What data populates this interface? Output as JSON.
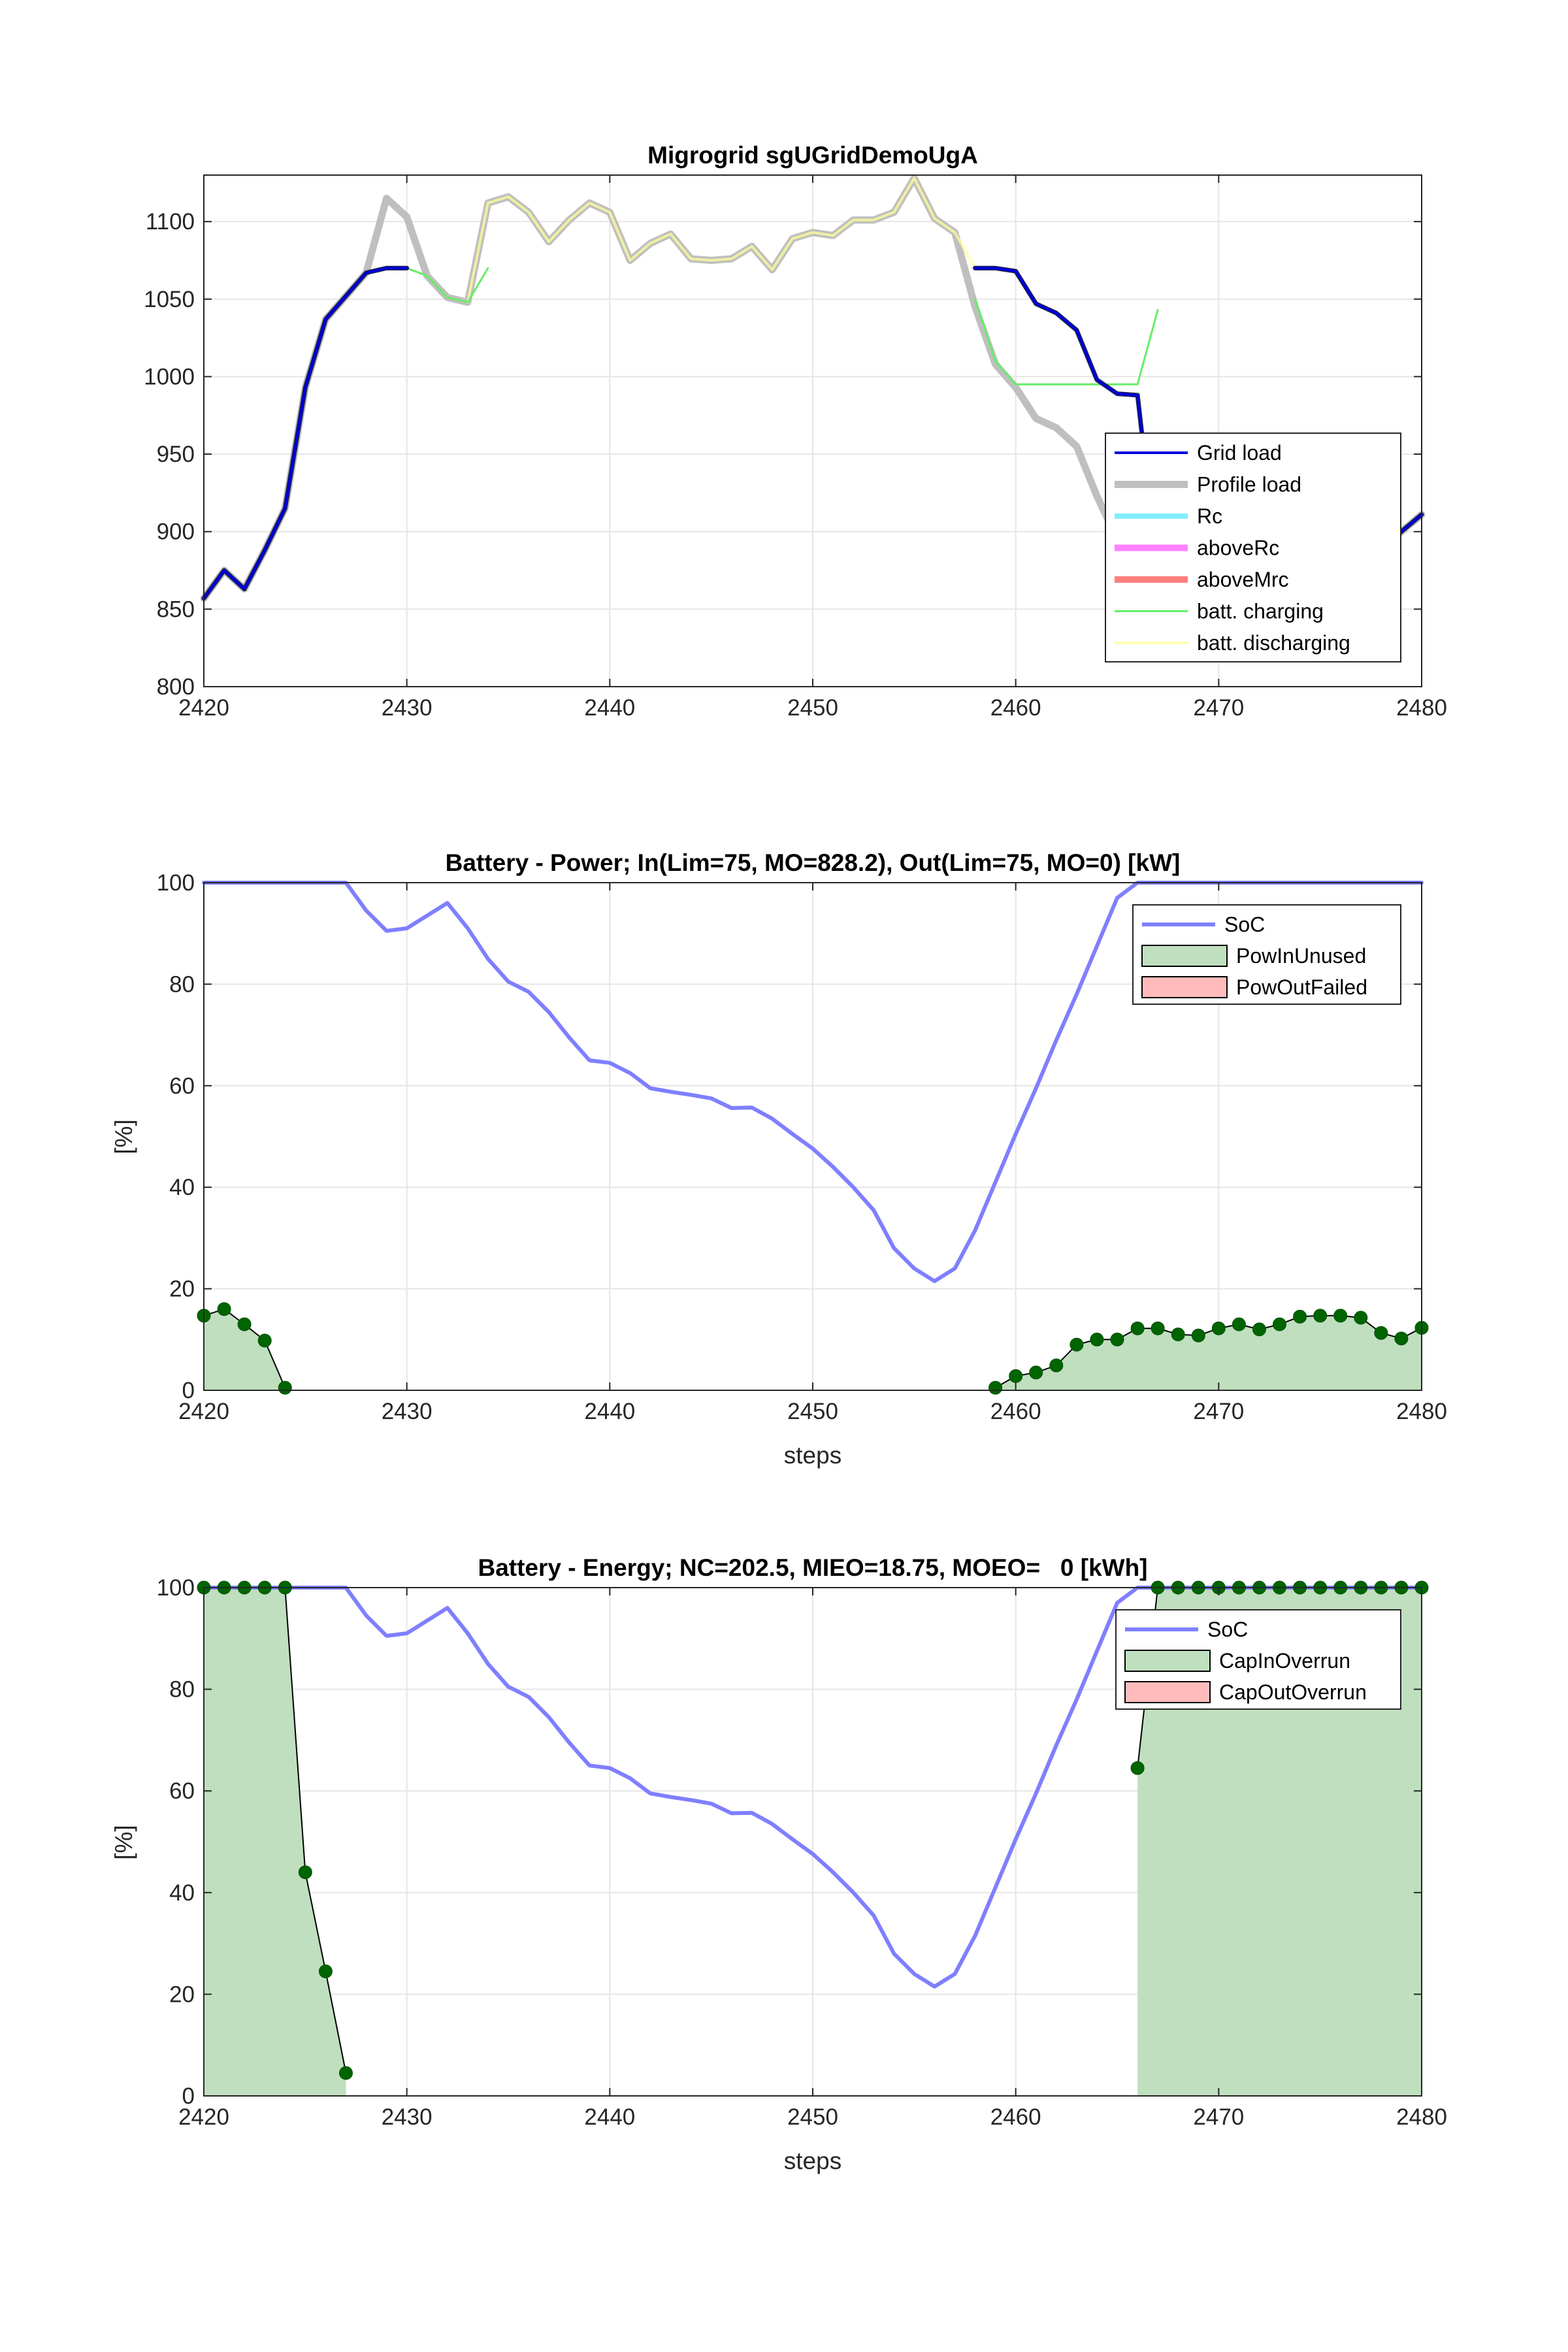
{
  "chart_data": [
    {
      "type": "line",
      "title": "Migrogrid sgUGridDemoUgA",
      "xlabel": "",
      "ylabel": "",
      "xlim": [
        2420,
        2480
      ],
      "ylim": [
        800,
        1130
      ],
      "xticks": [
        "2420",
        "2430",
        "2440",
        "2450",
        "2460",
        "2470",
        "2480"
      ],
      "yticks": [
        "800",
        "850",
        "900",
        "950",
        "1000",
        "1050",
        "1100"
      ],
      "grid": true,
      "legend_position": "bottom-right",
      "legend": [
        "Grid load",
        "Profile load",
        "Rc",
        "aboveRc",
        "aboveMrc",
        "batt. charging",
        "batt. discharging"
      ],
      "series": [
        {
          "name": "Profile load",
          "color": "#bfbfbf",
          "x": [
            2420,
            2421,
            2422,
            2423,
            2424,
            2425,
            2426,
            2427,
            2428,
            2429,
            2430,
            2431,
            2432,
            2433,
            2434,
            2435,
            2436,
            2437,
            2438,
            2439,
            2440,
            2441,
            2442,
            2443,
            2444,
            2445,
            2446,
            2447,
            2448,
            2449,
            2450,
            2451,
            2452,
            2453,
            2454,
            2455,
            2456,
            2457,
            2458,
            2459,
            2460,
            2461,
            2462,
            2463,
            2464,
            2465,
            2466,
            2467,
            2468,
            2469,
            2470,
            2471,
            2472,
            2473,
            2474,
            2475,
            2476,
            2477,
            2478,
            2479,
            2480
          ],
          "y": [
            857,
            875,
            863,
            888,
            915,
            993,
            1037,
            1052,
            1067,
            1115,
            1103,
            1065,
            1051,
            1048,
            1112,
            1116,
            1106,
            1087,
            1101,
            1112,
            1106,
            1075,
            1086,
            1092,
            1076,
            1075,
            1076,
            1084,
            1069,
            1089,
            1093,
            1091,
            1101,
            1101,
            1106,
            1128,
            1102,
            1093,
            1045,
            1008,
            993,
            973,
            967,
            955,
            923,
            895,
            880,
            873,
            866,
            859,
            852,
            848,
            845,
            852,
            860,
            868,
            872,
            878,
            888,
            900,
            911
          ]
        },
        {
          "name": "Grid load",
          "color": "#0000dd",
          "x": [
            2420,
            2421,
            2422,
            2423,
            2424,
            2425,
            2426,
            2427,
            2428,
            2429,
            2430,
            2458,
            2459,
            2460,
            2461,
            2462,
            2463,
            2464,
            2465,
            2466,
            2467,
            2468,
            2469,
            2470,
            2471,
            2472,
            2473,
            2474,
            2475,
            2476,
            2477,
            2478,
            2479,
            2480
          ],
          "y": [
            857,
            875,
            863,
            888,
            915,
            993,
            1037,
            1052,
            1067,
            1070,
            1070,
            1070,
            1070,
            1068,
            1047,
            1041,
            1030,
            998,
            989,
            988,
            873,
            866,
            859,
            852,
            848,
            845,
            852,
            860,
            868,
            872,
            878,
            888,
            900,
            911
          ]
        },
        {
          "name": "Rc",
          "color": "#80eeff",
          "x": [
            2420,
            2480
          ],
          "y": [
            1070,
            1070
          ]
        },
        {
          "name": "aboveRc",
          "color": "#ff80ff",
          "x": [],
          "y": []
        },
        {
          "name": "aboveMrc",
          "color": "#ff7f7f",
          "x": [],
          "y": []
        },
        {
          "name": "batt. charging",
          "color": "#66ee66",
          "x": [
            2430,
            2431,
            2432,
            2433,
            2434,
            2458,
            2459,
            2460,
            2461,
            2462,
            2463,
            2464,
            2465,
            2466,
            2467
          ],
          "y": [
            1070,
            1065,
            1051,
            1048,
            1070,
            1050,
            1010,
            995,
            995,
            995,
            995,
            995,
            995,
            995,
            1043
          ]
        },
        {
          "name": "batt. discharging",
          "color": "#ffff99",
          "x": [
            2433,
            2434,
            2435,
            2436,
            2437,
            2438,
            2439,
            2440,
            2441,
            2442,
            2443,
            2444,
            2445,
            2446,
            2447,
            2448,
            2449,
            2450,
            2451,
            2452,
            2453,
            2454,
            2455,
            2456,
            2457,
            2458
          ],
          "y": [
            1048,
            1112,
            1116,
            1106,
            1087,
            1101,
            1112,
            1106,
            1075,
            1086,
            1092,
            1076,
            1075,
            1076,
            1084,
            1069,
            1089,
            1093,
            1091,
            1101,
            1101,
            1106,
            1128,
            1102,
            1093,
            1070
          ]
        }
      ]
    },
    {
      "type": "line",
      "title": "Battery - Power; In(Lim=75, MO=828.2), Out(Lim=75, MO=0) [kW]",
      "xlabel": "steps",
      "ylabel": "[%]",
      "xlim": [
        2420,
        2480
      ],
      "ylim": [
        0,
        100
      ],
      "xticks": [
        "2420",
        "2430",
        "2440",
        "2450",
        "2460",
        "2470",
        "2480"
      ],
      "yticks": [
        "0",
        "20",
        "40",
        "60",
        "80",
        "100"
      ],
      "grid": true,
      "legend_position": "top-right",
      "legend": [
        "SoC",
        "PowInUnused",
        "PowOutFailed"
      ],
      "series": [
        {
          "name": "SoC",
          "color": "#7f7fff",
          "x": [
            2420,
            2421,
            2422,
            2423,
            2424,
            2425,
            2426,
            2427,
            2428,
            2429,
            2430,
            2431,
            2432,
            2433,
            2434,
            2435,
            2436,
            2437,
            2438,
            2439,
            2440,
            2441,
            2442,
            2443,
            2444,
            2445,
            2446,
            2447,
            2448,
            2449,
            2450,
            2451,
            2452,
            2453,
            2454,
            2455,
            2456,
            2457,
            2458,
            2459,
            2460,
            2461,
            2462,
            2463,
            2464,
            2465,
            2466,
            2467,
            2468,
            2469,
            2470,
            2471,
            2472,
            2473,
            2474,
            2475,
            2476,
            2477,
            2478,
            2479,
            2480
          ],
          "y": [
            100,
            100,
            100,
            100,
            100,
            100,
            100,
            100,
            94.5,
            90.5,
            91,
            93.5,
            96,
            91,
            85,
            80.5,
            78.5,
            74.5,
            69.5,
            65,
            64.5,
            62.5,
            59.5,
            58.8,
            58.2,
            57.5,
            55.6,
            55.7,
            53.5,
            50.5,
            47.6,
            44,
            40,
            35.5,
            28,
            24,
            21.5,
            24,
            31.5,
            41,
            50.5,
            59.5,
            69,
            78,
            87.5,
            97,
            100,
            100,
            100,
            100,
            100,
            100,
            100,
            100,
            100,
            100,
            100,
            100,
            100,
            100,
            100
          ]
        },
        {
          "name": "PowInUnused",
          "color": "#006400",
          "x": [
            2420,
            2421,
            2422,
            2423,
            2424,
            2459,
            2460,
            2461,
            2462,
            2463,
            2464,
            2465,
            2466,
            2467,
            2468,
            2469,
            2470,
            2471,
            2472,
            2473,
            2474,
            2475,
            2476,
            2477,
            2478,
            2479,
            2480
          ],
          "y": [
            14.7,
            16,
            13,
            9.8,
            0.5,
            0.5,
            2.8,
            3.5,
            4.9,
            9,
            10,
            10,
            12.2,
            12.2,
            11,
            10.8,
            12.2,
            13,
            12,
            13,
            14.5,
            14.7,
            14.7,
            14.3,
            11.3,
            10.2,
            12.3
          ]
        },
        {
          "name": "PowOutFailed",
          "color": "#ffbbbb",
          "x": [],
          "y": []
        }
      ]
    },
    {
      "type": "line",
      "title": "Battery - Energy; NC=202.5, MIEO=18.75, MOEO=   0 [kWh]",
      "xlabel": "steps",
      "ylabel": "[%]",
      "xlim": [
        2420,
        2480
      ],
      "ylim": [
        0,
        100
      ],
      "xticks": [
        "2420",
        "2430",
        "2440",
        "2450",
        "2460",
        "2470",
        "2480"
      ],
      "yticks": [
        "0",
        "20",
        "40",
        "60",
        "80",
        "100"
      ],
      "grid": true,
      "legend_position": "top-right",
      "legend": [
        "SoC",
        "CapInOverrun",
        "CapOutOverrun"
      ],
      "series": [
        {
          "name": "SoC",
          "color": "#7f7fff",
          "x": [
            2420,
            2421,
            2422,
            2423,
            2424,
            2425,
            2426,
            2427,
            2428,
            2429,
            2430,
            2431,
            2432,
            2433,
            2434,
            2435,
            2436,
            2437,
            2438,
            2439,
            2440,
            2441,
            2442,
            2443,
            2444,
            2445,
            2446,
            2447,
            2448,
            2449,
            2450,
            2451,
            2452,
            2453,
            2454,
            2455,
            2456,
            2457,
            2458,
            2459,
            2460,
            2461,
            2462,
            2463,
            2464,
            2465,
            2466,
            2467,
            2468,
            2469,
            2470,
            2471,
            2472,
            2473,
            2474,
            2475,
            2476,
            2477,
            2478,
            2479,
            2480
          ],
          "y": [
            100,
            100,
            100,
            100,
            100,
            100,
            100,
            100,
            94.5,
            90.5,
            91,
            93.5,
            96,
            91,
            85,
            80.5,
            78.5,
            74.5,
            69.5,
            65,
            64.5,
            62.5,
            59.5,
            58.8,
            58.2,
            57.5,
            55.6,
            55.7,
            53.5,
            50.5,
            47.6,
            44,
            40,
            35.5,
            28,
            24,
            21.5,
            24,
            31.5,
            41,
            50.5,
            59.5,
            69,
            78,
            87.5,
            97,
            100,
            100,
            100,
            100,
            100,
            100,
            100,
            100,
            100,
            100,
            100,
            100,
            100,
            100,
            100
          ]
        },
        {
          "name": "CapInOverrun",
          "color": "#006400",
          "x": [
            2420,
            2421,
            2422,
            2423,
            2424,
            2425,
            2426,
            2427,
            2466,
            2467,
            2468,
            2469,
            2470,
            2471,
            2472,
            2473,
            2474,
            2475,
            2476,
            2477,
            2478,
            2479,
            2480
          ],
          "y": [
            100,
            100,
            100,
            100,
            100,
            44,
            24.5,
            4.5,
            64.5,
            100,
            100,
            100,
            100,
            100,
            100,
            100,
            100,
            100,
            100,
            100,
            100,
            100,
            100
          ]
        },
        {
          "name": "CapOutOverrun",
          "color": "#ffbbbb",
          "x": [],
          "y": []
        }
      ]
    }
  ]
}
